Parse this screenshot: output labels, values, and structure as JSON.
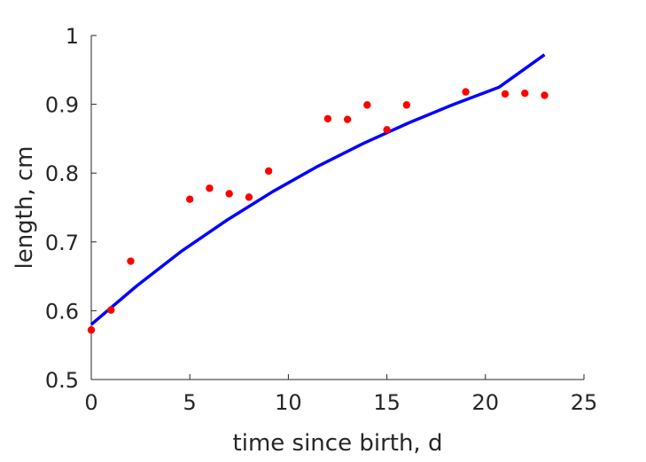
{
  "chart_data": {
    "type": "scatter",
    "title": "",
    "xlabel": "time since birth, d",
    "ylabel": "length, cm",
    "xlim": [
      0,
      25
    ],
    "ylim": [
      0.5,
      1
    ],
    "xticks": [
      0,
      5,
      10,
      15,
      20,
      25
    ],
    "xtick_labels": [
      "0",
      "5",
      "10",
      "15",
      "20",
      "25"
    ],
    "yticks": [
      0.5,
      0.6,
      0.7,
      0.8,
      0.9,
      1
    ],
    "ytick_labels": [
      "0.5",
      "0.6",
      "0.7",
      "0.8",
      "0.9",
      "1"
    ],
    "grid": false,
    "legend": "none",
    "series": [
      {
        "kind": "markers",
        "color": "#ff0000",
        "x": [
          0,
          1,
          2,
          5,
          6,
          7,
          8,
          9,
          12,
          13,
          14,
          15,
          16,
          19,
          21,
          22,
          23
        ],
        "y": [
          0.572,
          0.601,
          0.672,
          0.762,
          0.778,
          0.77,
          0.765,
          0.803,
          0.879,
          0.878,
          0.899,
          0.863,
          0.899,
          0.918,
          0.915,
          0.916,
          0.913
        ]
      },
      {
        "kind": "line",
        "color": "#0000ff",
        "x": [
          0,
          2.3,
          4.6,
          6.9,
          9.2,
          11.5,
          13.8,
          16.1,
          18.4,
          20.7,
          23
        ],
        "y": [
          0.58,
          0.636,
          0.687,
          0.732,
          0.773,
          0.81,
          0.843,
          0.873,
          0.9,
          0.925,
          0.972
        ]
      }
    ]
  }
}
